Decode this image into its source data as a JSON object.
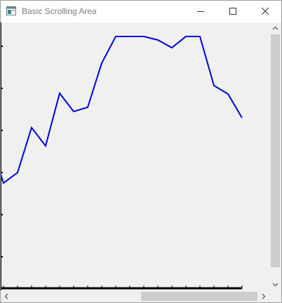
{
  "window": {
    "title": "Basic Scrolling Area",
    "icons": {
      "app": "application-icon",
      "minimize": "minimize-icon",
      "maximize": "maximize-icon",
      "close": "close-icon"
    }
  },
  "plot": {
    "line_color": "#0000dd",
    "axis_color": "#000000",
    "background": "#f0f0f0"
  },
  "scrollbars": {
    "vertical": {
      "up_icon": "chevron-up-icon",
      "down_icon": "chevron-down-icon"
    },
    "horizontal": {
      "left_icon": "chevron-left-icon",
      "right_icon": "chevron-right-icon"
    }
  }
}
